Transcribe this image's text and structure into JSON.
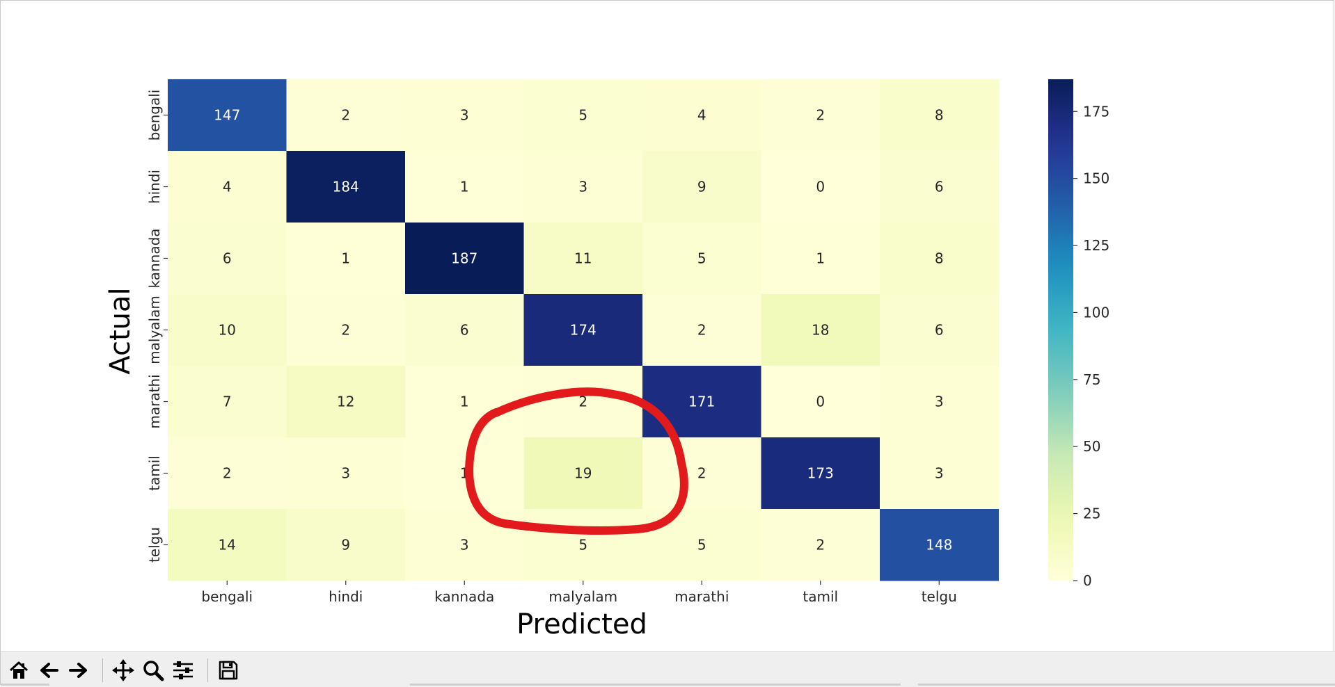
{
  "window": {
    "status": ""
  },
  "chart_data": {
    "type": "heatmap",
    "xlabel": "Predicted",
    "ylabel": "Actual",
    "x_categories": [
      "bengali",
      "hindi",
      "kannada",
      "malyalam",
      "marathi",
      "tamil",
      "telgu"
    ],
    "y_categories": [
      "bengali",
      "hindi",
      "kannada",
      "malyalam",
      "marathi",
      "tamil",
      "telgu"
    ],
    "values": [
      [
        147,
        2,
        3,
        5,
        4,
        2,
        8
      ],
      [
        4,
        184,
        1,
        3,
        9,
        0,
        6
      ],
      [
        6,
        1,
        187,
        11,
        5,
        1,
        8
      ],
      [
        10,
        2,
        6,
        174,
        2,
        18,
        6
      ],
      [
        7,
        12,
        1,
        2,
        171,
        0,
        3
      ],
      [
        2,
        3,
        1,
        19,
        2,
        173,
        3
      ],
      [
        14,
        9,
        3,
        5,
        5,
        2,
        148
      ]
    ],
    "colormap": "YlGnBu",
    "colorbar": {
      "min": 0,
      "max": 187,
      "ticks": [
        0,
        25,
        50,
        75,
        100,
        125,
        150,
        175
      ]
    },
    "annotation": {
      "shape": "hand-drawn-circle",
      "color": "#e31a1c",
      "around_cell": {
        "row": 5,
        "col": 3
      }
    }
  },
  "toolbar": {
    "buttons": [
      {
        "name": "home-button",
        "icon": "home-icon",
        "tooltip": "Reset original view"
      },
      {
        "name": "back-button",
        "icon": "arrow-left-icon",
        "tooltip": "Back to previous view"
      },
      {
        "name": "forward-button",
        "icon": "arrow-right-icon",
        "tooltip": "Forward to next view"
      },
      {
        "name": "pan-button",
        "icon": "move-icon",
        "tooltip": "Pan axes"
      },
      {
        "name": "zoom-button",
        "icon": "zoom-icon",
        "tooltip": "Zoom to rectangle"
      },
      {
        "name": "configure-button",
        "icon": "sliders-icon",
        "tooltip": "Configure subplots"
      },
      {
        "name": "save-button",
        "icon": "floppy-icon",
        "tooltip": "Save the figure"
      }
    ]
  }
}
